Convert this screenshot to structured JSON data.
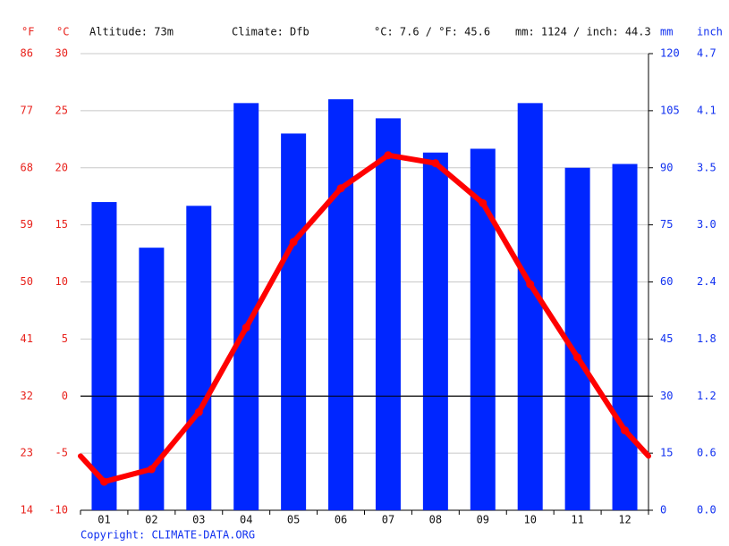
{
  "chart_data": {
    "type": "bar",
    "header": {
      "f_unit": "°F",
      "c_unit": "°C",
      "altitude": "Altitude: 73m",
      "climate": "Climate: Dfb",
      "mean_temp": "°C: 7.6 / °F: 45.6",
      "total_precip": "mm: 1124 / inch: 44.3",
      "mm_unit": "mm",
      "inch_unit": "inch"
    },
    "copyright": "Copyright: CLIMATE-DATA.ORG",
    "categories": [
      "01",
      "02",
      "03",
      "04",
      "05",
      "06",
      "07",
      "08",
      "09",
      "10",
      "11",
      "12"
    ],
    "series": [
      {
        "name": "Precipitation",
        "type": "bar",
        "axis": "y2",
        "color": "#0026ff",
        "values": [
          81,
          69,
          80,
          107,
          99,
          108,
          103,
          94,
          95,
          107,
          90,
          91
        ]
      },
      {
        "name": "Temperature",
        "type": "line",
        "color": "#ff0000",
        "values": [
          -7.5,
          -6.4,
          -1.4,
          6.0,
          13.5,
          18.2,
          21.1,
          20.4,
          16.9,
          9.8,
          3.4,
          -3.0
        ]
      }
    ],
    "ylim": [
      -10,
      30
    ],
    "yticks": [
      -10,
      -5,
      0,
      5,
      10,
      15,
      20,
      25,
      30
    ],
    "yticks_f": [
      {
        "value": -10,
        "label": "14"
      },
      {
        "value": -5,
        "label": "23"
      },
      {
        "value": 0,
        "label": "32"
      },
      {
        "value": 5,
        "label": "41"
      },
      {
        "value": 10,
        "label": "50"
      },
      {
        "value": 15,
        "label": "59"
      },
      {
        "value": 20,
        "label": "68"
      },
      {
        "value": 25,
        "label": "77"
      },
      {
        "value": 30,
        "label": "86"
      }
    ],
    "y2lim": [
      0,
      120
    ],
    "y2ticks": [
      0,
      15,
      30,
      45,
      60,
      75,
      90,
      105,
      120
    ],
    "y2ticks_inch": [
      {
        "value": 0,
        "label": "0.0"
      },
      {
        "value": 15,
        "label": "0.6"
      },
      {
        "value": 30,
        "label": "1.2"
      },
      {
        "value": 45,
        "label": "1.8"
      },
      {
        "value": 60,
        "label": "2.4"
      },
      {
        "value": 75,
        "label": "3.0"
      },
      {
        "value": 90,
        "label": "3.5"
      },
      {
        "value": 105,
        "label": "4.1"
      },
      {
        "value": 120,
        "label": "4.7"
      }
    ],
    "grid": true
  }
}
